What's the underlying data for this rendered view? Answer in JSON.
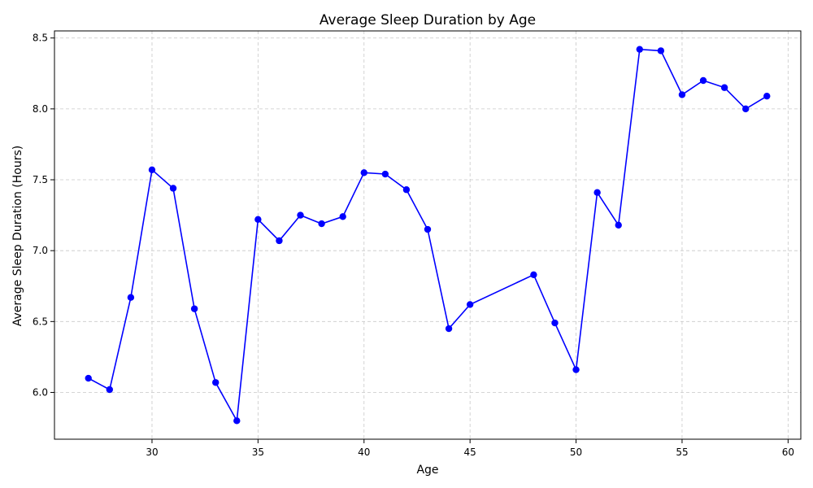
{
  "chart_data": {
    "type": "line",
    "title": "Average Sleep Duration by Age",
    "xlabel": "Age",
    "ylabel": "Average Sleep Duration (Hours)",
    "xlim": [
      25.4,
      60.6
    ],
    "ylim": [
      5.67,
      8.55
    ],
    "xticks": [
      30,
      35,
      40,
      45,
      50,
      55,
      60
    ],
    "yticks": [
      6.0,
      6.5,
      7.0,
      7.5,
      8.0,
      8.5
    ],
    "xtick_labels": [
      "30",
      "35",
      "40",
      "45",
      "50",
      "55",
      "60"
    ],
    "ytick_labels": [
      "6.0",
      "6.5",
      "7.0",
      "7.5",
      "8.0",
      "8.5"
    ],
    "grid": true,
    "legend": "none",
    "series": [
      {
        "color": "#0000ff",
        "marker": "circle",
        "x": [
          27,
          28,
          29,
          30,
          31,
          32,
          33,
          34,
          35,
          36,
          37,
          38,
          39,
          40,
          41,
          42,
          43,
          44,
          45,
          48,
          49,
          50,
          51,
          52,
          53,
          54,
          55,
          56,
          57,
          58,
          59
        ],
        "y": [
          6.1,
          6.02,
          6.67,
          7.57,
          7.44,
          6.59,
          6.07,
          5.8,
          7.22,
          7.07,
          7.25,
          7.19,
          7.24,
          7.55,
          7.54,
          7.43,
          7.15,
          6.45,
          6.62,
          6.83,
          6.49,
          6.16,
          7.41,
          7.18,
          8.42,
          8.41,
          8.1,
          8.2,
          8.15,
          8.0,
          8.09
        ]
      }
    ]
  }
}
